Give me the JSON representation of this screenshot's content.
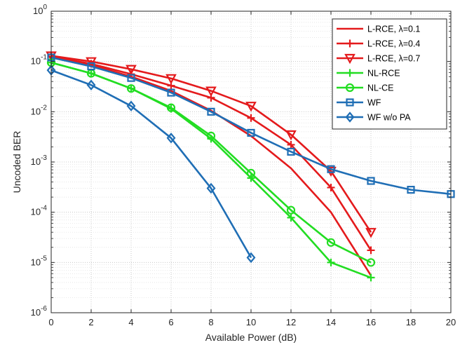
{
  "chart_data": {
    "type": "line",
    "xlabel": "Available Power (dB)",
    "ylabel": "Uncoded BER",
    "xlim": [
      0,
      20
    ],
    "ylim": [
      1e-06,
      1
    ],
    "yscale": "log",
    "grid": true,
    "minor_grid": true,
    "legend_position": "top-right",
    "x_ticks": [
      "0",
      "2",
      "4",
      "6",
      "8",
      "10",
      "12",
      "14",
      "16",
      "18",
      "20"
    ],
    "y_ticks": [
      {
        "base": "10",
        "exp": "0"
      },
      {
        "base": "10",
        "exp": "-1"
      },
      {
        "base": "10",
        "exp": "-2"
      },
      {
        "base": "10",
        "exp": "-3"
      },
      {
        "base": "10",
        "exp": "-4"
      },
      {
        "base": "10",
        "exp": "-5"
      },
      {
        "base": "10",
        "exp": "-6"
      }
    ],
    "series": [
      {
        "name": "L-RCE, λ=0.1",
        "color": "#e41a1c",
        "marker": "none",
        "x": [
          0,
          2,
          4,
          6,
          8,
          10,
          12,
          14,
          16
        ],
        "y": [
          0.12,
          0.085,
          0.05,
          0.026,
          0.0105,
          0.0033,
          0.00075,
          0.0001,
          5.5e-06
        ]
      },
      {
        "name": "L-RCE, λ=0.4",
        "color": "#e41a1c",
        "marker": "plus",
        "x": [
          0,
          2,
          4,
          6,
          8,
          10,
          12,
          14,
          16
        ],
        "y": [
          0.125,
          0.09,
          0.056,
          0.033,
          0.019,
          0.0075,
          0.0022,
          0.00031,
          1.75e-05
        ]
      },
      {
        "name": "L-RCE, λ=0.7",
        "color": "#e41a1c",
        "marker": "triangle-down",
        "x": [
          0,
          2,
          4,
          6,
          8,
          10,
          12,
          14,
          16
        ],
        "y": [
          0.13,
          0.1,
          0.07,
          0.046,
          0.026,
          0.013,
          0.0035,
          0.00066,
          4e-05
        ]
      },
      {
        "name": "NL-RCE",
        "color": "#22dd22",
        "marker": "plus",
        "x": [
          0,
          2,
          4,
          6,
          8,
          10,
          12,
          14,
          16
        ],
        "y": [
          0.095,
          0.058,
          0.029,
          0.0115,
          0.0029,
          0.00048,
          7.8e-05,
          1e-05,
          5e-06
        ]
      },
      {
        "name": "NL-CE",
        "color": "#22dd22",
        "marker": "circle",
        "x": [
          0,
          2,
          4,
          6,
          8,
          10,
          12,
          14,
          16
        ],
        "y": [
          0.095,
          0.058,
          0.029,
          0.012,
          0.0033,
          0.0006,
          0.00011,
          2.5e-05,
          1e-05
        ]
      },
      {
        "name": "WF",
        "color": "#1f6eb5",
        "marker": "square",
        "x": [
          0,
          2,
          4,
          6,
          8,
          10,
          12,
          14,
          16,
          18,
          20
        ],
        "y": [
          0.12,
          0.08,
          0.047,
          0.024,
          0.01,
          0.0038,
          0.0016,
          0.00072,
          0.00042,
          0.00028,
          0.00023
        ]
      },
      {
        "name": "WF w/o PA",
        "color": "#1f6eb5",
        "marker": "diamond",
        "x": [
          0,
          2,
          4,
          6,
          8,
          10
        ],
        "y": [
          0.067,
          0.034,
          0.013,
          0.003,
          0.0003,
          1.25e-05
        ]
      }
    ]
  }
}
